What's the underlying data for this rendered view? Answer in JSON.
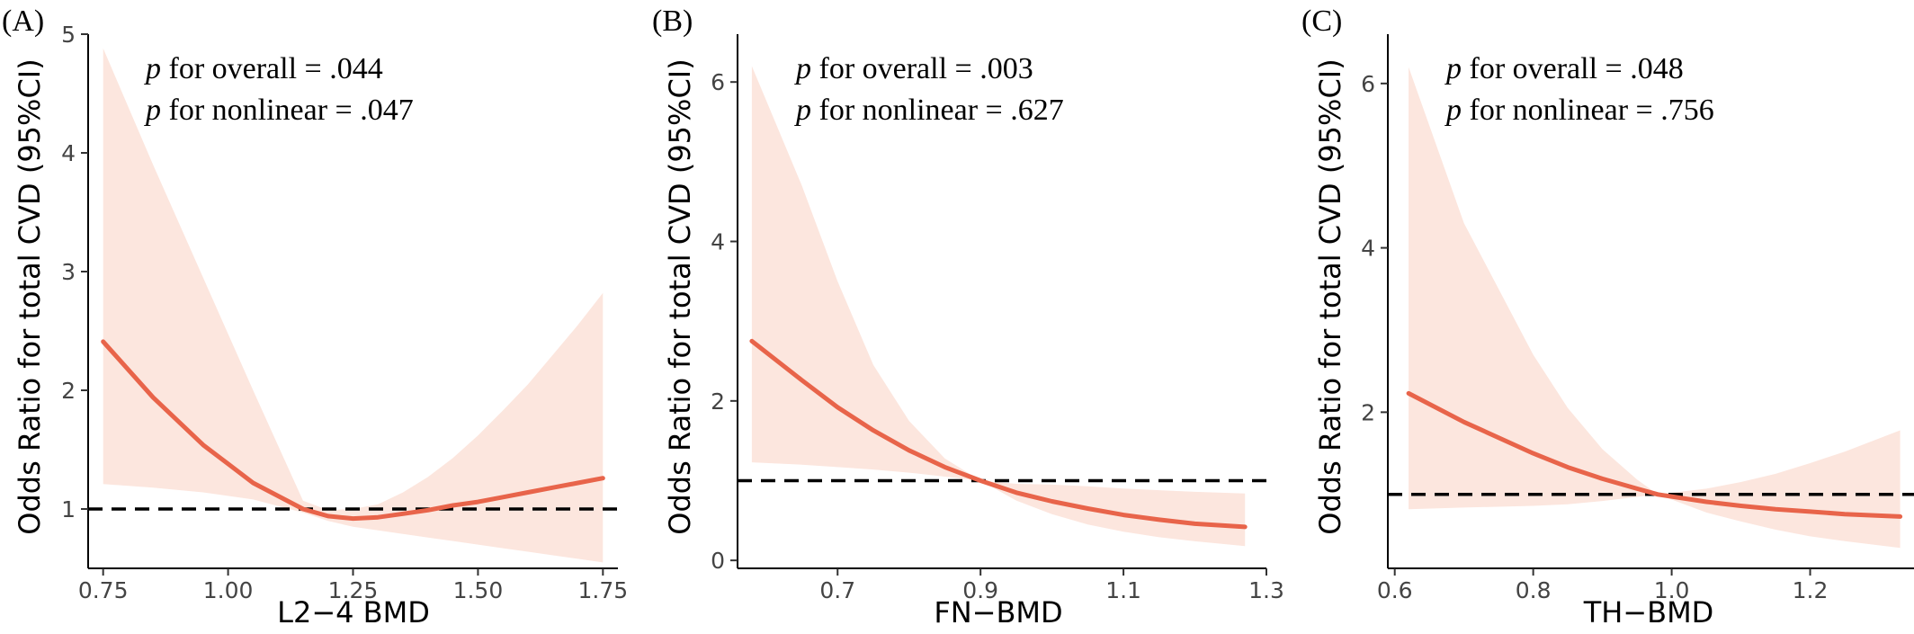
{
  "chart_data": [
    {
      "type": "line",
      "panel_label": "(A)",
      "xlabel": "L2−4 BMD",
      "ylabel": "Odds Ratio for total CVD (95%CI)",
      "xlim": [
        0.72,
        1.78
      ],
      "ylim": [
        0.5,
        5.0
      ],
      "xticks": [
        0.75,
        1.0,
        1.25,
        1.5,
        1.75
      ],
      "xtick_labels": [
        "0.75",
        "1.00",
        "1.25",
        "1.50",
        "1.75"
      ],
      "yticks": [
        1,
        2,
        3,
        4,
        5
      ],
      "ytick_labels": [
        "1",
        "2",
        "3",
        "4",
        "5"
      ],
      "reference_line": 1,
      "annotations": [
        {
          "italic": "p",
          "text": " for overall = .044"
        },
        {
          "italic": "p",
          "text": " for nonlinear = .047"
        }
      ],
      "colors": {
        "line": "#e8644a",
        "band": "#fce6de",
        "reference": "#000000"
      },
      "series": [
        {
          "x": [
            0.75,
            0.85,
            0.95,
            1.05,
            1.15,
            1.2,
            1.25,
            1.3,
            1.35,
            1.4,
            1.45,
            1.5,
            1.55,
            1.6,
            1.65,
            1.7,
            1.75
          ],
          "y": [
            2.41,
            1.94,
            1.54,
            1.22,
            1.0,
            0.94,
            0.92,
            0.93,
            0.96,
            0.99,
            1.03,
            1.06,
            1.1,
            1.14,
            1.18,
            1.22,
            1.26
          ],
          "lower": [
            1.21,
            1.18,
            1.14,
            1.08,
            0.97,
            0.9,
            0.85,
            0.82,
            0.79,
            0.76,
            0.73,
            0.7,
            0.67,
            0.64,
            0.61,
            0.58,
            0.55
          ],
          "upper": [
            4.88,
            3.9,
            2.95,
            2.0,
            1.07,
            0.99,
            1.0,
            1.04,
            1.14,
            1.27,
            1.43,
            1.62,
            1.83,
            2.05,
            2.3,
            2.55,
            2.82
          ]
        }
      ]
    },
    {
      "type": "line",
      "panel_label": "(B)",
      "xlabel": "FN−BMD",
      "ylabel": "Odds Ratio for total CVD (95%CI)",
      "xlim": [
        0.56,
        1.3
      ],
      "ylim": [
        -0.1,
        6.6
      ],
      "xticks": [
        0.7,
        0.9,
        1.1,
        1.3
      ],
      "xtick_labels": [
        "0.7",
        "0.9",
        "1.1",
        "1.3"
      ],
      "yticks": [
        0,
        2,
        4,
        6
      ],
      "ytick_labels": [
        "0",
        "2",
        "4",
        "6"
      ],
      "reference_line": 1,
      "annotations": [
        {
          "italic": "p",
          "text": " for overall = .003"
        },
        {
          "italic": "p",
          "text": " for nonlinear = .627"
        }
      ],
      "colors": {
        "line": "#e8644a",
        "band": "#fce6de",
        "reference": "#000000"
      },
      "series": [
        {
          "x": [
            0.58,
            0.65,
            0.7,
            0.75,
            0.8,
            0.85,
            0.9,
            0.95,
            1.0,
            1.05,
            1.1,
            1.15,
            1.2,
            1.27
          ],
          "y": [
            2.75,
            2.26,
            1.92,
            1.63,
            1.38,
            1.17,
            1.0,
            0.85,
            0.74,
            0.65,
            0.57,
            0.51,
            0.46,
            0.42
          ],
          "lower": [
            1.23,
            1.2,
            1.17,
            1.14,
            1.1,
            1.05,
            1.0,
            0.75,
            0.58,
            0.45,
            0.36,
            0.29,
            0.24,
            0.18
          ],
          "upper": [
            6.2,
            4.7,
            3.5,
            2.45,
            1.75,
            1.28,
            1.0,
            0.96,
            0.95,
            0.93,
            0.9,
            0.88,
            0.86,
            0.84
          ]
        }
      ]
    },
    {
      "type": "line",
      "panel_label": "(C)",
      "xlabel": "TH−BMD",
      "ylabel": "Odds Ratio for total CVD (95%CI)",
      "xlim": [
        0.59,
        1.35
      ],
      "ylim": [
        0.1,
        6.6
      ],
      "xticks": [
        0.6,
        0.8,
        1.0,
        1.2
      ],
      "xtick_labels": [
        "0.6",
        "0.8",
        "1.0",
        "1.2"
      ],
      "yticks": [
        2,
        4,
        6
      ],
      "ytick_labels": [
        "2",
        "4",
        "6"
      ],
      "reference_line": 1,
      "annotations": [
        {
          "italic": "p",
          "text": " for overall = .048"
        },
        {
          "italic": "p",
          "text": " for nonlinear = .756"
        }
      ],
      "colors": {
        "line": "#e8644a",
        "band": "#fce6de",
        "reference": "#000000"
      },
      "series": [
        {
          "x": [
            0.62,
            0.7,
            0.8,
            0.85,
            0.9,
            0.95,
            0.98,
            1.05,
            1.1,
            1.15,
            1.2,
            1.25,
            1.33
          ],
          "y": [
            2.23,
            1.88,
            1.5,
            1.33,
            1.19,
            1.07,
            1.0,
            0.91,
            0.86,
            0.82,
            0.79,
            0.76,
            0.73
          ],
          "lower": [
            0.82,
            0.84,
            0.86,
            0.88,
            0.92,
            0.97,
            1.0,
            0.78,
            0.67,
            0.57,
            0.49,
            0.43,
            0.35
          ],
          "upper": [
            6.2,
            4.3,
            2.7,
            2.05,
            1.55,
            1.18,
            1.0,
            1.07,
            1.15,
            1.25,
            1.38,
            1.52,
            1.78
          ]
        }
      ]
    }
  ]
}
